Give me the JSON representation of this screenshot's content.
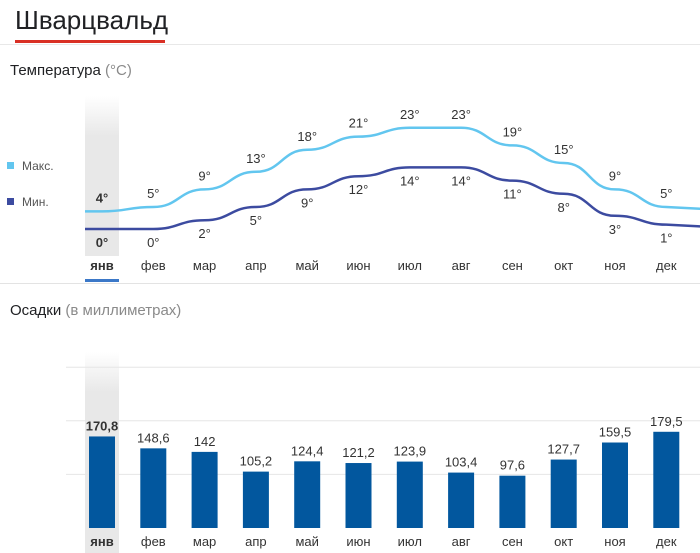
{
  "page": {
    "title": "Шварцвальд"
  },
  "colors": {
    "max_line": "#62c6ef",
    "min_line": "#3c4ba0",
    "bars": "#02579e",
    "selected_bg": "#e8e8e8",
    "accent": "#d93025",
    "month_underline": "#3b78c8"
  },
  "temperature": {
    "title": "Температура",
    "unit": "(°C)",
    "legend": [
      {
        "label": "Макс.",
        "color": "#62c6ef"
      },
      {
        "label": "Мин.",
        "color": "#3c4ba0"
      }
    ]
  },
  "precipitation": {
    "title": "Осадки",
    "unit": "(в миллиметрах)"
  },
  "selected_month_index": 0,
  "chart_data": [
    {
      "type": "line",
      "categories": [
        "янв",
        "фев",
        "мар",
        "апр",
        "май",
        "июн",
        "июл",
        "авг",
        "сен",
        "окт",
        "ноя",
        "дек"
      ],
      "series": [
        {
          "name": "Макс.",
          "values": [
            4,
            5,
            9,
            13,
            18,
            21,
            23,
            23,
            19,
            15,
            9,
            5
          ]
        },
        {
          "name": "Мин.",
          "values": [
            0,
            0,
            2,
            5,
            9,
            12,
            14,
            14,
            11,
            8,
            3,
            1
          ]
        }
      ],
      "data_labels": {
        "max": [
          "4°",
          "5°",
          "9°",
          "13°",
          "18°",
          "21°",
          "23°",
          "23°",
          "19°",
          "15°",
          "9°",
          "5°"
        ],
        "min": [
          "0°",
          "0°",
          "2°",
          "5°",
          "9°",
          "12°",
          "14°",
          "14°",
          "11°",
          "8°",
          "3°",
          "1°"
        ]
      },
      "legend": "left"
    },
    {
      "type": "bar",
      "categories": [
        "янв",
        "фев",
        "мар",
        "апр",
        "май",
        "июн",
        "июл",
        "авг",
        "сен",
        "окт",
        "ноя",
        "дек"
      ],
      "values": [
        170.8,
        148.6,
        142,
        105.2,
        124.4,
        121.2,
        123.9,
        103.4,
        97.6,
        127.7,
        159.5,
        179.5
      ],
      "data_labels": [
        "170,8",
        "148,6",
        "142",
        "105,2",
        "124,4",
        "121,2",
        "123,9",
        "103,4",
        "97,6",
        "127,7",
        "159,5",
        "179,5"
      ],
      "ylim": [
        0,
        300
      ],
      "grid": true
    }
  ]
}
